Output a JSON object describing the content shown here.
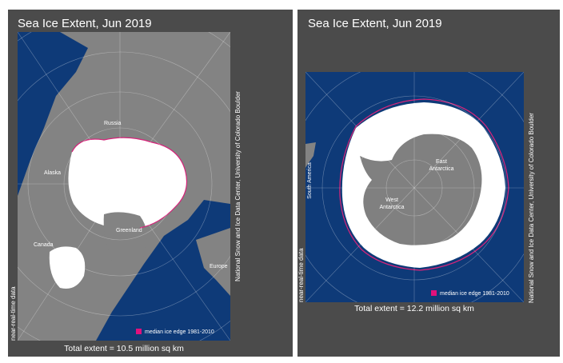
{
  "panels": [
    {
      "title": "Sea Ice Extent, Jun 2019",
      "labels": [
        {
          "lines": [
            "Russia"
          ]
        },
        {
          "lines": [
            "Alaska"
          ]
        },
        {
          "lines": [
            "Greenland"
          ]
        },
        {
          "lines": [
            "Canada"
          ]
        },
        {
          "lines": [
            "Europe"
          ]
        }
      ],
      "legend": "median ice edge 1981-2010",
      "total": "Total extent = 10.5 million sq km",
      "credit": "National Snow and Ice Data Center, University of Colorado Boulder",
      "note": "near-real-time data"
    },
    {
      "title": "Sea Ice Extent, Jun 2019",
      "labels": [
        {
          "lines": [
            "South America"
          ]
        },
        {
          "lines": [
            "East",
            "Antarctica"
          ]
        },
        {
          "lines": [
            "West",
            "Antarctica"
          ]
        }
      ],
      "legend": "median ice edge 1981-2010",
      "total": "Total extent = 12.2 million sq km",
      "credit": "National Snow and Ice Data Center, University of Colorado Boulder",
      "note": "near-real-time data"
    }
  ]
}
